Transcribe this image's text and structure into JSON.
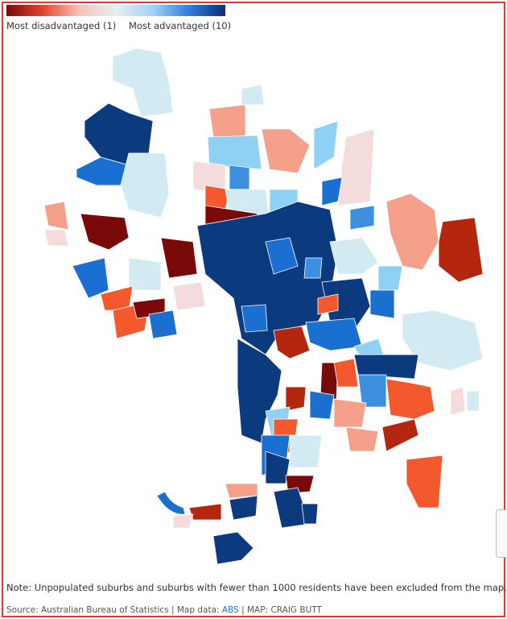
{
  "legend": {
    "min_label": "Most disadvantaged (1)",
    "max_label": "Most advantaged (10)"
  },
  "note": "Note: Unpopulated suburbs and suburbs with fewer than 1000 residents have been excluded from the map.",
  "source": {
    "prefix": "Source: Australian Bureau of Statistics | Map data:",
    "link": "ABS",
    "suffix": "| MAP: CRAIG BUTT"
  }
}
